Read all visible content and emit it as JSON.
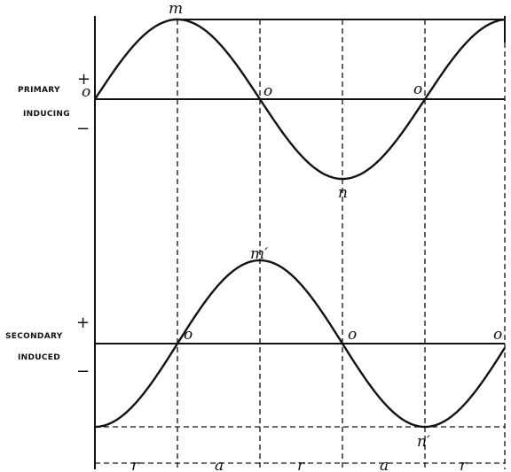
{
  "primary": {
    "label_line1": "PRIMARY",
    "label_line2": "INDUCING",
    "plus": "+",
    "minus": "−",
    "origin": "o",
    "peak": "m",
    "trough": "n",
    "zero1": "o",
    "zero2": "o"
  },
  "secondary": {
    "label_line1": "SECONDARY",
    "label_line2": "INDUCED",
    "plus": "+",
    "minus": "−",
    "peak": "m′",
    "trough": "n′",
    "zero1": "o",
    "zero2": "o",
    "zero3": "o"
  },
  "intervals": [
    "r",
    "a",
    "r",
    "a",
    "r"
  ]
}
